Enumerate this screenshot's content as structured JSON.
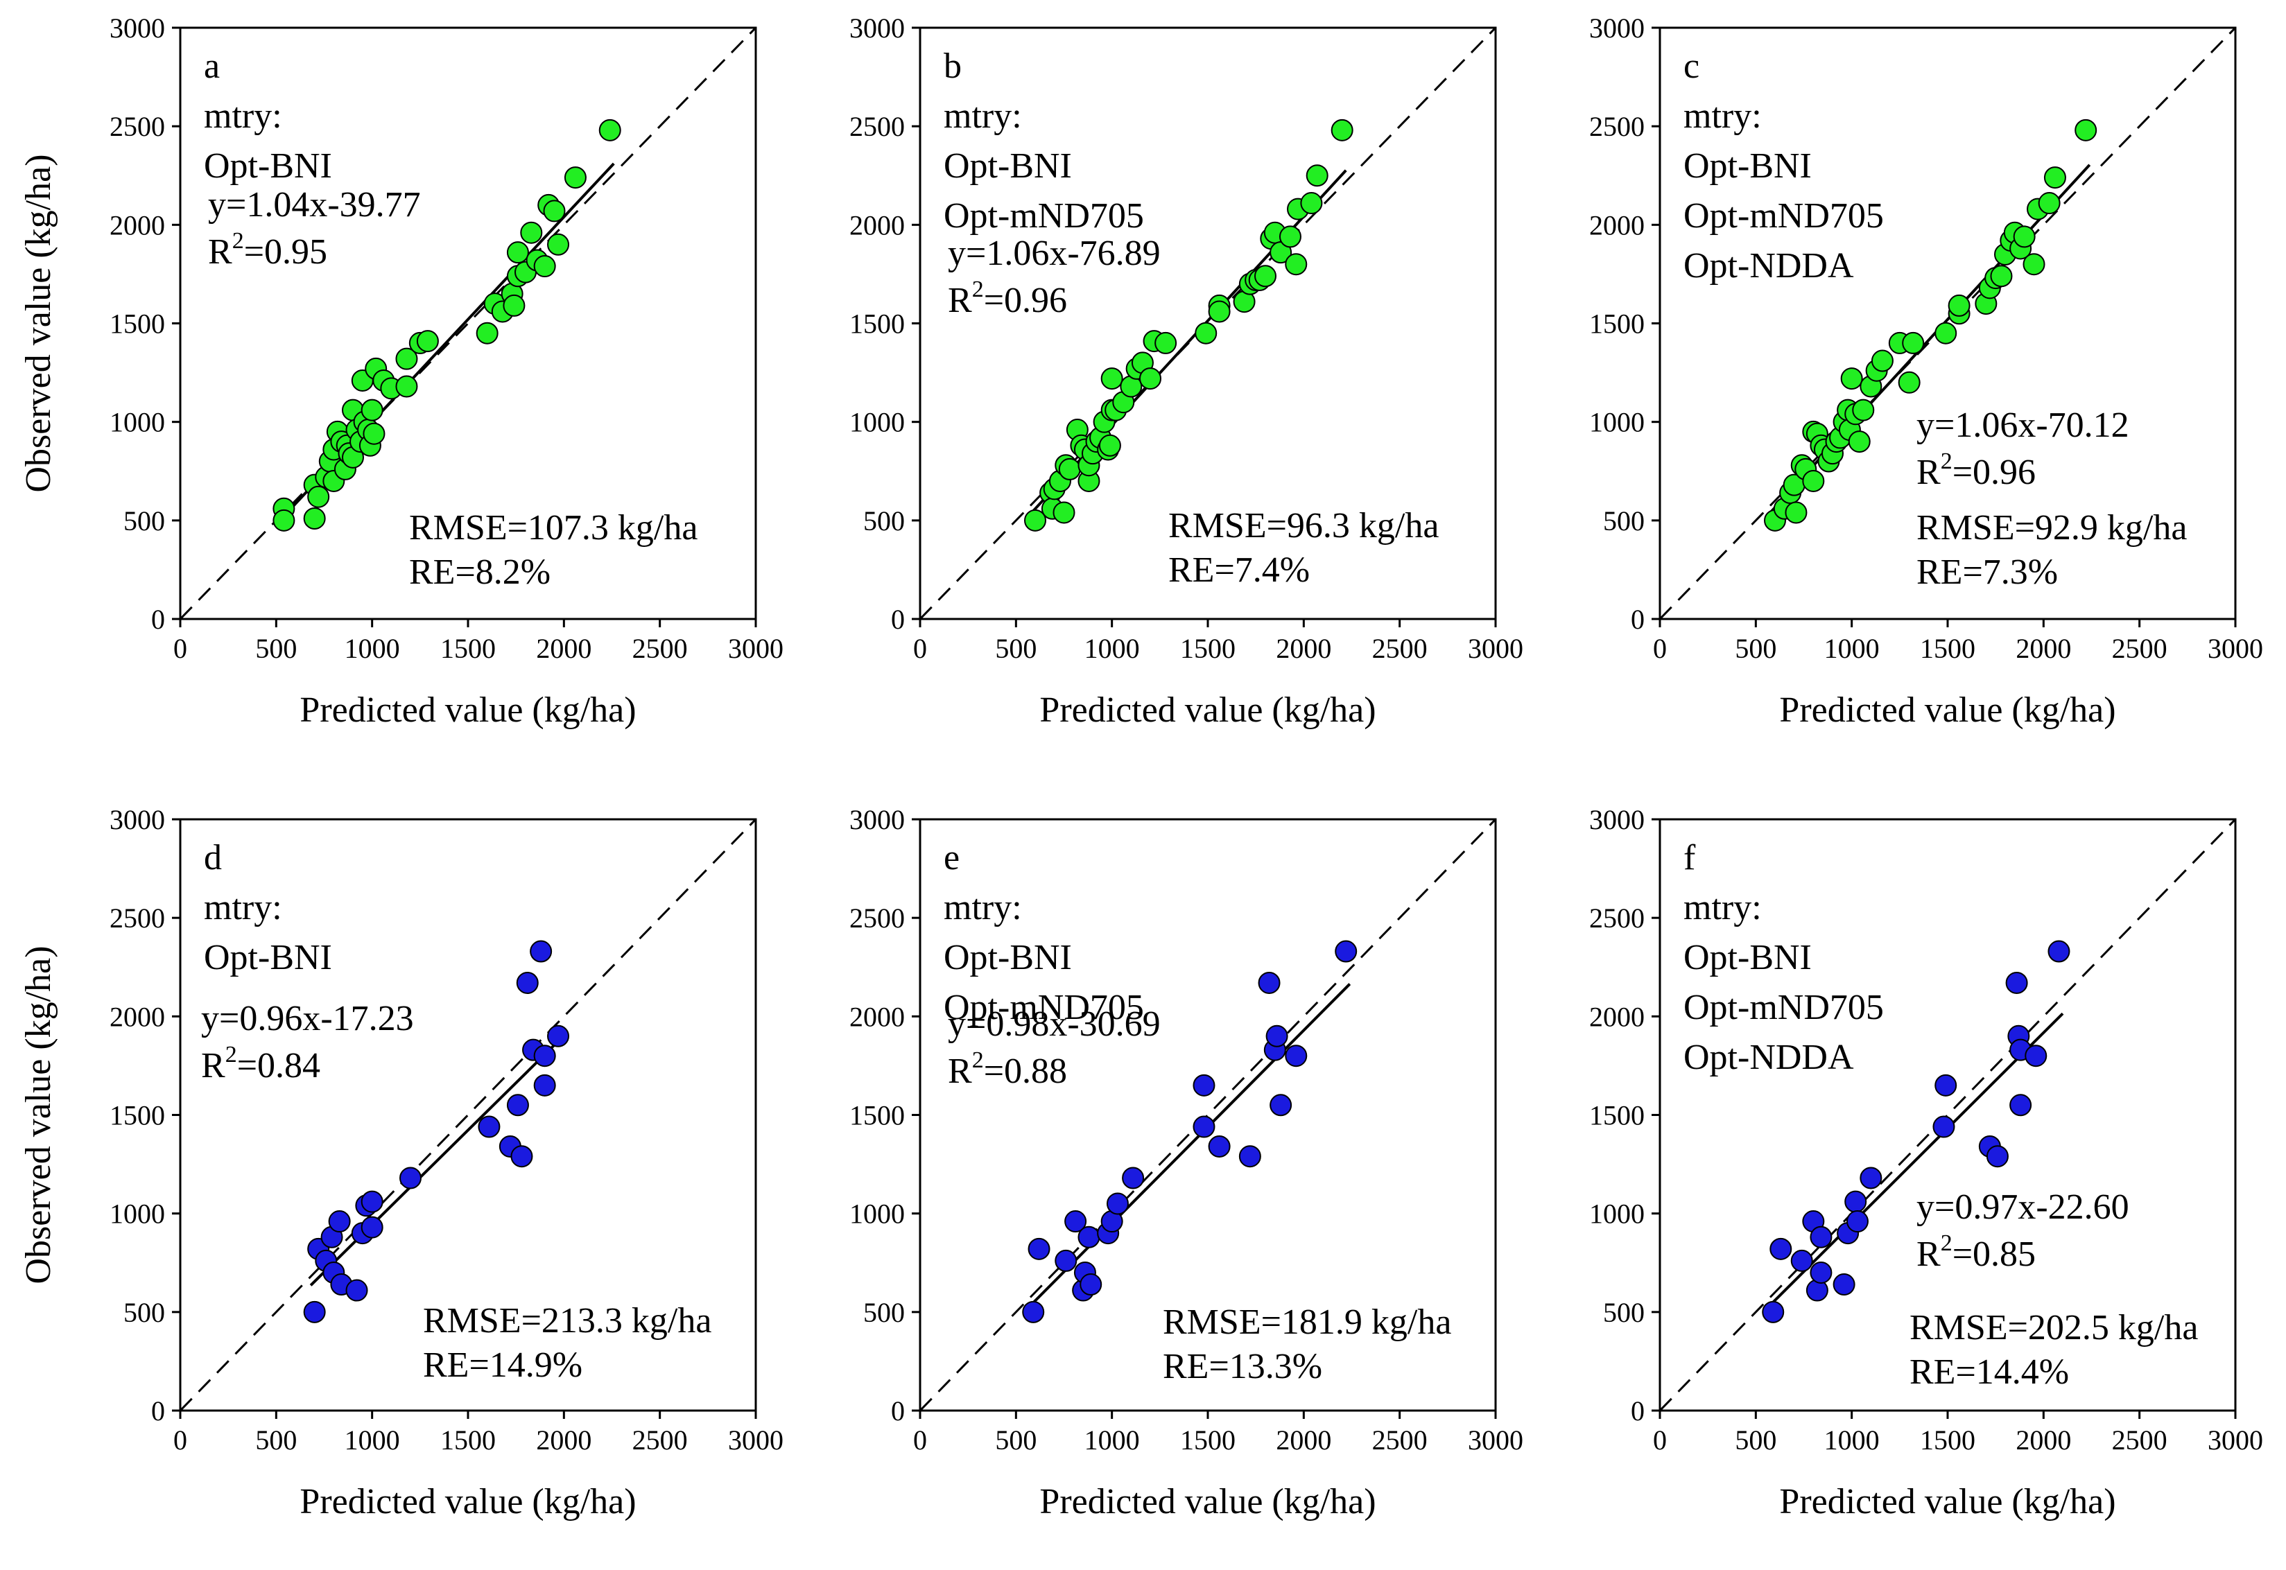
{
  "figure": {
    "xlabel": "Predicted value (kg/ha)",
    "ylabel": "Observed value (kg/ha)",
    "axis_range": [
      0,
      3000
    ],
    "ticks": [
      0,
      500,
      1000,
      1500,
      2000,
      2500,
      3000
    ],
    "colors": {
      "calibration": "#22ee22",
      "validation": "#1a1adf",
      "outline": "#000000"
    }
  },
  "chart_data": [
    {
      "type": "scatter",
      "panel_label": "a",
      "title": "",
      "xlabel": "Predicted value (kg/ha)",
      "ylabel": "Observed value (kg/ha)",
      "xlim": [
        0,
        3000
      ],
      "ylim": [
        0,
        3000
      ],
      "marker_color": "#22ee22",
      "mtry_label": "mtry:",
      "mtry": [
        "Opt-BNI"
      ],
      "equation": "y=1.04x-39.77",
      "r2_value": "=0.95",
      "rmse": "RMSE=107.3 kg/ha",
      "re": "RE=8.2%",
      "fit": {
        "slope": 1.04,
        "intercept": -39.77
      },
      "points": [
        [
          540,
          560
        ],
        [
          540,
          500
        ],
        [
          700,
          510
        ],
        [
          700,
          680
        ],
        [
          720,
          620
        ],
        [
          760,
          720
        ],
        [
          780,
          800
        ],
        [
          800,
          860
        ],
        [
          800,
          700
        ],
        [
          820,
          950
        ],
        [
          840,
          900
        ],
        [
          860,
          760
        ],
        [
          870,
          880
        ],
        [
          880,
          840
        ],
        [
          900,
          1060
        ],
        [
          900,
          820
        ],
        [
          920,
          960
        ],
        [
          940,
          900
        ],
        [
          950,
          1210
        ],
        [
          960,
          1000
        ],
        [
          980,
          960
        ],
        [
          990,
          880
        ],
        [
          1000,
          1060
        ],
        [
          1010,
          940
        ],
        [
          1020,
          1270
        ],
        [
          1060,
          1210
        ],
        [
          1100,
          1170
        ],
        [
          1180,
          1180
        ],
        [
          1180,
          1320
        ],
        [
          1250,
          1400
        ],
        [
          1290,
          1410
        ],
        [
          1600,
          1450
        ],
        [
          1640,
          1600
        ],
        [
          1680,
          1560
        ],
        [
          1730,
          1650
        ],
        [
          1740,
          1590
        ],
        [
          1760,
          1740
        ],
        [
          1760,
          1860
        ],
        [
          1800,
          1760
        ],
        [
          1830,
          1960
        ],
        [
          1860,
          1820
        ],
        [
          1900,
          1790
        ],
        [
          1920,
          2100
        ],
        [
          1950,
          2070
        ],
        [
          1970,
          1900
        ],
        [
          2060,
          2240
        ],
        [
          2240,
          2480
        ]
      ]
    },
    {
      "type": "scatter",
      "panel_label": "b",
      "title": "",
      "xlabel": "Predicted value (kg/ha)",
      "ylabel": "",
      "xlim": [
        0,
        3000
      ],
      "ylim": [
        0,
        3000
      ],
      "marker_color": "#22ee22",
      "mtry_label": "mtry:",
      "mtry": [
        "Opt-BNI",
        "Opt-mND705"
      ],
      "equation": "y=1.06x-76.89",
      "r2_value": "=0.96",
      "rmse": "RMSE=96.3 kg/ha",
      "re": "RE=7.4%",
      "fit": {
        "slope": 1.06,
        "intercept": -76.89
      },
      "points": [
        [
          600,
          500
        ],
        [
          680,
          640
        ],
        [
          690,
          560
        ],
        [
          700,
          660
        ],
        [
          730,
          700
        ],
        [
          750,
          540
        ],
        [
          760,
          780
        ],
        [
          780,
          760
        ],
        [
          820,
          960
        ],
        [
          840,
          880
        ],
        [
          860,
          860
        ],
        [
          880,
          700
        ],
        [
          880,
          780
        ],
        [
          900,
          840
        ],
        [
          920,
          900
        ],
        [
          940,
          920
        ],
        [
          960,
          1000
        ],
        [
          980,
          860
        ],
        [
          990,
          880
        ],
        [
          1000,
          1060
        ],
        [
          1000,
          1220
        ],
        [
          1020,
          1060
        ],
        [
          1060,
          1100
        ],
        [
          1100,
          1180
        ],
        [
          1130,
          1270
        ],
        [
          1160,
          1300
        ],
        [
          1200,
          1220
        ],
        [
          1220,
          1410
        ],
        [
          1280,
          1400
        ],
        [
          1490,
          1450
        ],
        [
          1560,
          1590
        ],
        [
          1560,
          1560
        ],
        [
          1690,
          1610
        ],
        [
          1720,
          1700
        ],
        [
          1750,
          1720
        ],
        [
          1770,
          1720
        ],
        [
          1800,
          1740
        ],
        [
          1830,
          1930
        ],
        [
          1850,
          1960
        ],
        [
          1880,
          1860
        ],
        [
          1930,
          1940
        ],
        [
          1960,
          1800
        ],
        [
          1970,
          2080
        ],
        [
          2040,
          2110
        ],
        [
          2070,
          2250
        ],
        [
          2200,
          2480
        ]
      ]
    },
    {
      "type": "scatter",
      "panel_label": "c",
      "title": "",
      "xlabel": "Predicted value (kg/ha)",
      "ylabel": "",
      "xlim": [
        0,
        3000
      ],
      "ylim": [
        0,
        3000
      ],
      "marker_color": "#22ee22",
      "mtry_label": "mtry:",
      "mtry": [
        "Opt-BNI",
        "Opt-mND705",
        "Opt-NDDA"
      ],
      "equation": "y=1.06x-70.12",
      "r2_value": "=0.96",
      "rmse": "RMSE=92.9 kg/ha",
      "re": "RE=7.3%",
      "fit": {
        "slope": 1.06,
        "intercept": -70.12
      },
      "points": [
        [
          600,
          500
        ],
        [
          650,
          560
        ],
        [
          680,
          640
        ],
        [
          700,
          680
        ],
        [
          710,
          540
        ],
        [
          740,
          780
        ],
        [
          760,
          760
        ],
        [
          800,
          700
        ],
        [
          800,
          950
        ],
        [
          820,
          940
        ],
        [
          840,
          880
        ],
        [
          860,
          860
        ],
        [
          880,
          800
        ],
        [
          900,
          840
        ],
        [
          920,
          900
        ],
        [
          940,
          920
        ],
        [
          960,
          1000
        ],
        [
          980,
          1060
        ],
        [
          990,
          960
        ],
        [
          1000,
          1220
        ],
        [
          1020,
          1040
        ],
        [
          1040,
          900
        ],
        [
          1060,
          1060
        ],
        [
          1100,
          1180
        ],
        [
          1130,
          1260
        ],
        [
          1160,
          1310
        ],
        [
          1250,
          1400
        ],
        [
          1300,
          1200
        ],
        [
          1320,
          1400
        ],
        [
          1490,
          1450
        ],
        [
          1560,
          1550
        ],
        [
          1560,
          1590
        ],
        [
          1700,
          1600
        ],
        [
          1720,
          1680
        ],
        [
          1750,
          1730
        ],
        [
          1780,
          1740
        ],
        [
          1800,
          1850
        ],
        [
          1830,
          1920
        ],
        [
          1850,
          1960
        ],
        [
          1880,
          1880
        ],
        [
          1900,
          1940
        ],
        [
          1950,
          1800
        ],
        [
          1970,
          2080
        ],
        [
          2030,
          2110
        ],
        [
          2060,
          2240
        ],
        [
          2220,
          2480
        ]
      ]
    },
    {
      "type": "scatter",
      "panel_label": "d",
      "title": "",
      "xlabel": "Predicted value (kg/ha)",
      "ylabel": "Observed value (kg/ha)",
      "xlim": [
        0,
        3000
      ],
      "ylim": [
        0,
        3000
      ],
      "marker_color": "#1a1adf",
      "mtry_label": "mtry:",
      "mtry": [
        "Opt-BNI"
      ],
      "equation": "y=0.96x-17.23",
      "r2_value": "=0.84",
      "rmse": "RMSE=213.3 kg/ha",
      "re": "RE=14.9%",
      "fit": {
        "slope": 0.96,
        "intercept": -17.23
      },
      "points": [
        [
          700,
          500
        ],
        [
          720,
          820
        ],
        [
          760,
          760
        ],
        [
          790,
          880
        ],
        [
          800,
          700
        ],
        [
          830,
          960
        ],
        [
          840,
          640
        ],
        [
          920,
          610
        ],
        [
          950,
          900
        ],
        [
          970,
          1040
        ],
        [
          1000,
          1060
        ],
        [
          1000,
          930
        ],
        [
          1200,
          1180
        ],
        [
          1610,
          1440
        ],
        [
          1720,
          1340
        ],
        [
          1760,
          1550
        ],
        [
          1780,
          1290
        ],
        [
          1810,
          2170
        ],
        [
          1840,
          1830
        ],
        [
          1880,
          2330
        ],
        [
          1900,
          1800
        ],
        [
          1900,
          1650
        ],
        [
          1970,
          1900
        ]
      ]
    },
    {
      "type": "scatter",
      "panel_label": "e",
      "title": "",
      "xlabel": "Predicted value (kg/ha)",
      "ylabel": "",
      "xlim": [
        0,
        3000
      ],
      "ylim": [
        0,
        3000
      ],
      "marker_color": "#1a1adf",
      "mtry_label": "mtry:",
      "mtry": [
        "Opt-BNI",
        "Opt-mND705"
      ],
      "equation": "y=0.98x-30.69",
      "r2_value": "=0.88",
      "rmse": "RMSE=181.9 kg/ha",
      "re": "RE=13.3%",
      "fit": {
        "slope": 0.98,
        "intercept": -30.69
      },
      "points": [
        [
          590,
          500
        ],
        [
          620,
          820
        ],
        [
          760,
          760
        ],
        [
          810,
          960
        ],
        [
          850,
          610
        ],
        [
          860,
          700
        ],
        [
          880,
          880
        ],
        [
          890,
          640
        ],
        [
          980,
          900
        ],
        [
          1000,
          960
        ],
        [
          1030,
          1050
        ],
        [
          1110,
          1180
        ],
        [
          1480,
          1440
        ],
        [
          1480,
          1650
        ],
        [
          1560,
          1340
        ],
        [
          1720,
          1290
        ],
        [
          1820,
          2170
        ],
        [
          1850,
          1830
        ],
        [
          1860,
          1900
        ],
        [
          1880,
          1550
        ],
        [
          1960,
          1800
        ],
        [
          2220,
          2330
        ]
      ]
    },
    {
      "type": "scatter",
      "panel_label": "f",
      "title": "",
      "xlabel": "Predicted value (kg/ha)",
      "ylabel": "",
      "xlim": [
        0,
        3000
      ],
      "ylim": [
        0,
        3000
      ],
      "marker_color": "#1a1adf",
      "mtry_label": "mtry:",
      "mtry": [
        "Opt-BNI",
        "Opt-mND705",
        "Opt-NDDA"
      ],
      "equation": "y=0.97x-22.60",
      "r2_value": "=0.85",
      "rmse": "RMSE=202.5 kg/ha",
      "re": "RE=14.4%",
      "fit": {
        "slope": 0.97,
        "intercept": -22.6
      },
      "points": [
        [
          590,
          500
        ],
        [
          630,
          820
        ],
        [
          740,
          760
        ],
        [
          800,
          960
        ],
        [
          820,
          610
        ],
        [
          840,
          880
        ],
        [
          840,
          700
        ],
        [
          960,
          640
        ],
        [
          980,
          900
        ],
        [
          1020,
          1060
        ],
        [
          1030,
          960
        ],
        [
          1100,
          1180
        ],
        [
          1480,
          1440
        ],
        [
          1490,
          1650
        ],
        [
          1720,
          1340
        ],
        [
          1760,
          1290
        ],
        [
          1860,
          2170
        ],
        [
          1870,
          1900
        ],
        [
          1880,
          1550
        ],
        [
          1880,
          1830
        ],
        [
          1960,
          1800
        ],
        [
          2080,
          2330
        ]
      ]
    }
  ]
}
